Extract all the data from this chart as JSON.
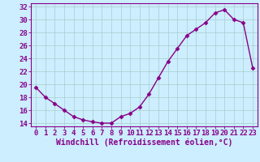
{
  "x": [
    0,
    1,
    2,
    3,
    4,
    5,
    6,
    7,
    8,
    9,
    10,
    11,
    12,
    13,
    14,
    15,
    16,
    17,
    18,
    19,
    20,
    21,
    22,
    23
  ],
  "y": [
    19.5,
    18,
    17,
    16,
    15,
    14.5,
    14.2,
    14,
    14,
    15,
    15.5,
    16.5,
    18.5,
    21,
    23.5,
    25.5,
    27.5,
    28.5,
    29.5,
    31,
    31.5,
    30,
    29.5,
    22.5
  ],
  "line_color": "#880088",
  "marker": "D",
  "marker_size": 2.5,
  "bg_color": "#cceeff",
  "grid_color": "#aacccc",
  "xlabel": "Windchill (Refroidissement éolien,°C)",
  "ylim": [
    13.5,
    32.5
  ],
  "yticks": [
    14,
    16,
    18,
    20,
    22,
    24,
    26,
    28,
    30,
    32
  ],
  "xticks": [
    0,
    1,
    2,
    3,
    4,
    5,
    6,
    7,
    8,
    9,
    10,
    11,
    12,
    13,
    14,
    15,
    16,
    17,
    18,
    19,
    20,
    21,
    22,
    23
  ],
  "xlim": [
    -0.5,
    23.5
  ],
  "xlabel_fontsize": 7,
  "tick_fontsize": 6.5,
  "line_width": 1.0
}
